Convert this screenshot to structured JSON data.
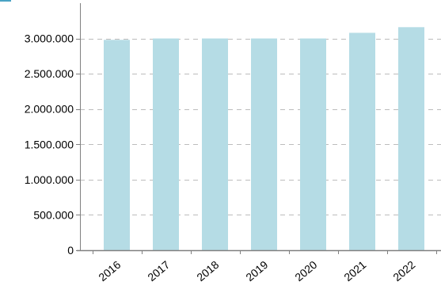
{
  "chart_data": {
    "type": "bar",
    "title": "",
    "xlabel": "",
    "ylabel": "",
    "categories": [
      "2016",
      "2017",
      "2018",
      "2019",
      "2020",
      "2021",
      "2022"
    ],
    "values": [
      2980000,
      3000000,
      3000000,
      3000000,
      3000000,
      3080000,
      3160000
    ],
    "ylim": [
      0,
      3500000
    ],
    "yticks": [
      0,
      500000,
      1000000,
      1500000,
      2000000,
      2500000,
      3000000
    ],
    "ytick_labels": [
      "0",
      "500.000",
      "1.000.000",
      "1.500.000",
      "2.000.000",
      "2.500.000",
      "3.000.000"
    ],
    "grid": true,
    "legend": "none",
    "colors": {
      "bar": "#b5dce5",
      "grid": "#bcbcbc",
      "axis": "#808080",
      "corner_accent": "#4aa3c4"
    }
  }
}
